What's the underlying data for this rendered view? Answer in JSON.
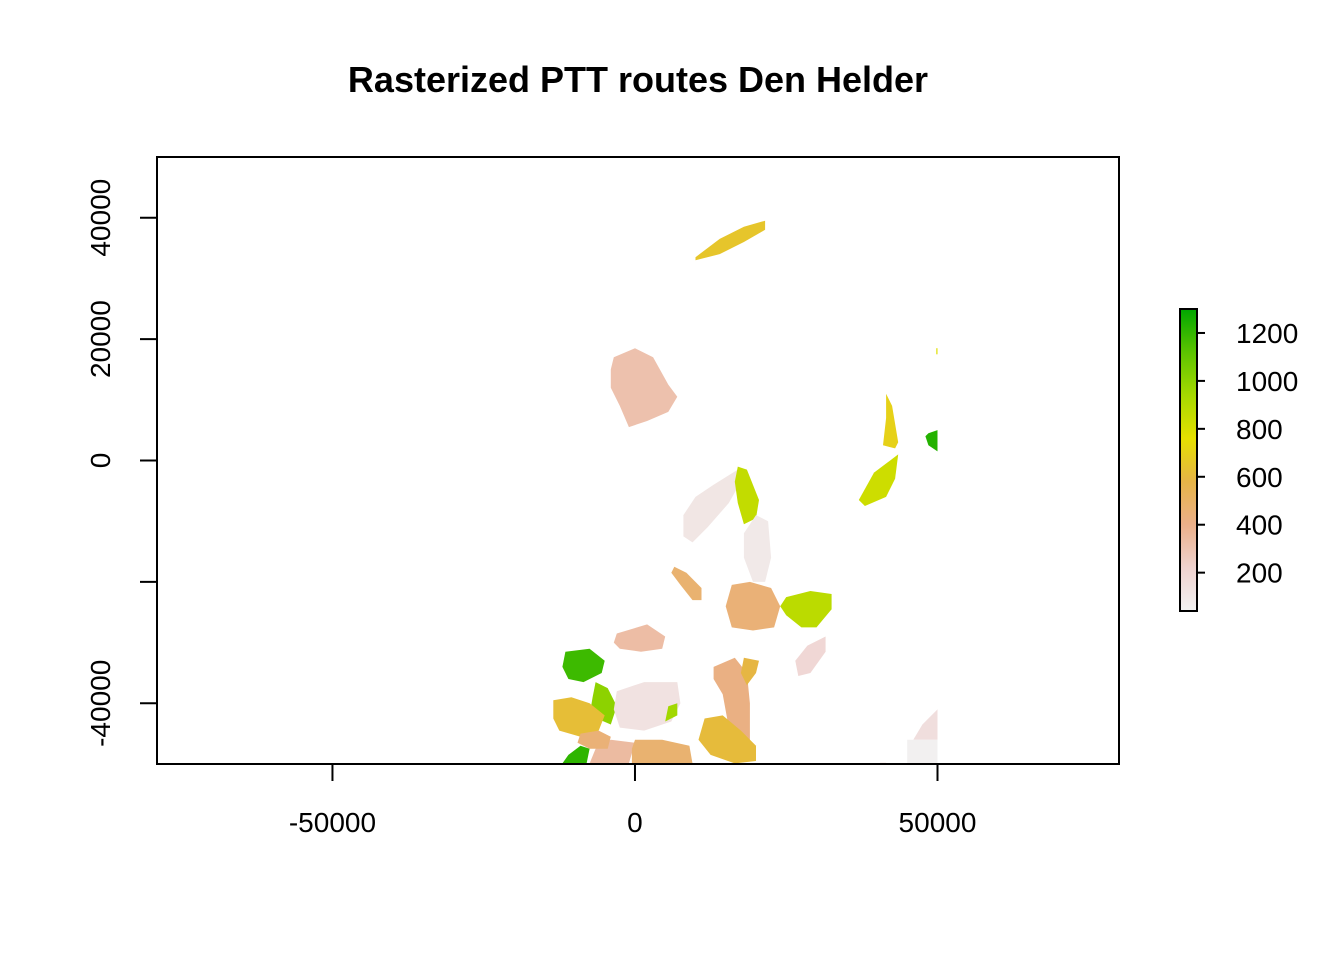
{
  "chart_data": {
    "type": "heatmap",
    "title": "Rasterized PTT routes Den Helder",
    "xlabel": "",
    "ylabel": "",
    "xlim": [
      -79000,
      80000
    ],
    "ylim": [
      -50000,
      50000
    ],
    "x_ticks": [
      -50000,
      0,
      50000
    ],
    "x_tick_labels": [
      "-50000",
      "0",
      "50000"
    ],
    "y_ticks": [
      -40000,
      -20000,
      0,
      20000,
      40000
    ],
    "y_tick_labels": [
      "-40000",
      "",
      "0",
      "20000",
      "40000"
    ],
    "legend": {
      "position": "right",
      "range": [
        40,
        1300
      ],
      "ticks": [
        200,
        400,
        600,
        800,
        1000,
        1200
      ],
      "tick_labels": [
        "200",
        "400",
        "600",
        "800",
        "1000",
        "1200"
      ],
      "colors": [
        "#f2f2f2",
        "#efd2cf",
        "#ebb08a",
        "#e6b447",
        "#e6e000",
        "#a6d900",
        "#5cc400",
        "#00a600"
      ]
    },
    "patches": [
      {
        "label": "patch-north",
        "value": 650,
        "points": [
          [
            10000,
            33500
          ],
          [
            14000,
            36500
          ],
          [
            18000,
            38500
          ],
          [
            21500,
            39500
          ],
          [
            21500,
            38000
          ],
          [
            18000,
            36000
          ],
          [
            14000,
            34000
          ],
          [
            10000,
            33000
          ]
        ]
      },
      {
        "label": "patch-west-mid",
        "value": 310,
        "points": [
          [
            -3500,
            17000
          ],
          [
            0,
            18500
          ],
          [
            3000,
            17000
          ],
          [
            5500,
            12500
          ],
          [
            7000,
            10500
          ],
          [
            5500,
            8000
          ],
          [
            2000,
            6500
          ],
          [
            -1000,
            5500
          ],
          [
            -2500,
            9000
          ],
          [
            -4000,
            12000
          ],
          [
            -4000,
            15000
          ]
        ]
      },
      {
        "label": "patch-east-strip-1",
        "value": 700,
        "points": [
          [
            41500,
            11000
          ],
          [
            42500,
            9000
          ],
          [
            43500,
            3000
          ],
          [
            43000,
            2000
          ],
          [
            41000,
            2500
          ],
          [
            41500,
            7000
          ]
        ]
      },
      {
        "label": "patch-east-strip-2",
        "value": 830,
        "points": [
          [
            39500,
            -2000
          ],
          [
            41500,
            -500
          ],
          [
            43500,
            1000
          ],
          [
            43000,
            -3000
          ],
          [
            41500,
            -6000
          ],
          [
            38000,
            -7500
          ],
          [
            37000,
            -6500
          ]
        ]
      },
      {
        "label": "patch-east-edge-green",
        "value": 1230,
        "points": [
          [
            48500,
            4500
          ],
          [
            50000,
            5000
          ],
          [
            50000,
            1500
          ],
          [
            48500,
            2500
          ],
          [
            48000,
            4000
          ]
        ]
      },
      {
        "label": "patch-east-edge-dot",
        "value": 780,
        "points": [
          [
            49800,
            18500
          ],
          [
            50000,
            18500
          ],
          [
            50000,
            17500
          ],
          [
            49800,
            17500
          ]
        ]
      },
      {
        "label": "patch-center-pale",
        "value": 110,
        "points": [
          [
            13000,
            -4000
          ],
          [
            17000,
            -1500
          ],
          [
            17500,
            -3500
          ],
          [
            15500,
            -7000
          ],
          [
            12000,
            -11000
          ],
          [
            9500,
            -13500
          ],
          [
            8000,
            -12500
          ],
          [
            8000,
            -9000
          ],
          [
            10000,
            -6000
          ]
        ]
      },
      {
        "label": "patch-center-lime",
        "value": 860,
        "points": [
          [
            17000,
            -1000
          ],
          [
            18500,
            -1500
          ],
          [
            20500,
            -6500
          ],
          [
            20000,
            -9500
          ],
          [
            18000,
            -10500
          ],
          [
            17000,
            -7000
          ],
          [
            16500,
            -3500
          ]
        ]
      },
      {
        "label": "patch-center-pale-2",
        "value": 90,
        "points": [
          [
            20000,
            -9000
          ],
          [
            22000,
            -10000
          ],
          [
            22500,
            -16000
          ],
          [
            21500,
            -20000
          ],
          [
            19500,
            -20000
          ],
          [
            18000,
            -16000
          ],
          [
            18000,
            -12000
          ]
        ]
      },
      {
        "label": "patch-small-orange",
        "value": 470,
        "points": [
          [
            6500,
            -17500
          ],
          [
            8500,
            -18500
          ],
          [
            11000,
            -21000
          ],
          [
            11000,
            -23000
          ],
          [
            9500,
            -23000
          ],
          [
            7500,
            -20500
          ],
          [
            6000,
            -18500
          ]
        ]
      },
      {
        "label": "patch-orange-large",
        "value": 450,
        "points": [
          [
            16000,
            -20500
          ],
          [
            19000,
            -20000
          ],
          [
            22500,
            -21000
          ],
          [
            24000,
            -24000
          ],
          [
            23000,
            -27500
          ],
          [
            19500,
            -28000
          ],
          [
            16000,
            -27500
          ],
          [
            15000,
            -24000
          ]
        ]
      },
      {
        "label": "patch-green-east",
        "value": 880,
        "points": [
          [
            25000,
            -22500
          ],
          [
            29000,
            -21500
          ],
          [
            32500,
            -22000
          ],
          [
            32500,
            -24500
          ],
          [
            30000,
            -27500
          ],
          [
            27500,
            -27500
          ],
          [
            25000,
            -25500
          ],
          [
            24000,
            -24000
          ]
        ]
      },
      {
        "label": "patch-salmon-east",
        "value": 190,
        "points": [
          [
            28500,
            -30500
          ],
          [
            31500,
            -29000
          ],
          [
            31500,
            -31500
          ],
          [
            29000,
            -35000
          ],
          [
            27000,
            -35500
          ],
          [
            26500,
            -33000
          ]
        ]
      },
      {
        "label": "patch-peach-west",
        "value": 330,
        "points": [
          [
            -3000,
            -28500
          ],
          [
            2000,
            -27000
          ],
          [
            5000,
            -29000
          ],
          [
            4500,
            -31000
          ],
          [
            1000,
            -31500
          ],
          [
            -2500,
            -31000
          ],
          [
            -3500,
            -30000
          ]
        ]
      },
      {
        "label": "patch-green-sw",
        "value": 1180,
        "points": [
          [
            -11500,
            -31500
          ],
          [
            -7500,
            -31000
          ],
          [
            -5000,
            -33000
          ],
          [
            -5500,
            -35000
          ],
          [
            -8500,
            -36500
          ],
          [
            -11000,
            -36000
          ],
          [
            -12000,
            -34000
          ]
        ]
      },
      {
        "label": "patch-green-sw-2",
        "value": 1000,
        "points": [
          [
            -6500,
            -36500
          ],
          [
            -4500,
            -37500
          ],
          [
            -3000,
            -40500
          ],
          [
            -4000,
            -43500
          ],
          [
            -7500,
            -42000
          ],
          [
            -7000,
            -39000
          ]
        ]
      },
      {
        "label": "patch-yellow-sw",
        "value": 620,
        "points": [
          [
            -13500,
            -39500
          ],
          [
            -10500,
            -39000
          ],
          [
            -7500,
            -40000
          ],
          [
            -5000,
            -42000
          ],
          [
            -6000,
            -44500
          ],
          [
            -9000,
            -45500
          ],
          [
            -12500,
            -44500
          ],
          [
            -13500,
            -42500
          ]
        ]
      },
      {
        "label": "patch-pale-center-sw",
        "value": 130,
        "points": [
          [
            -3000,
            -38000
          ],
          [
            1500,
            -36500
          ],
          [
            7000,
            -36500
          ],
          [
            7500,
            -40000
          ],
          [
            6000,
            -43000
          ],
          [
            1500,
            -44500
          ],
          [
            -2500,
            -44000
          ],
          [
            -3500,
            -41000
          ]
        ]
      },
      {
        "label": "patch-green-lower-right-tip",
        "value": 950,
        "points": [
          [
            5500,
            -40500
          ],
          [
            7000,
            -40000
          ],
          [
            7000,
            -42000
          ],
          [
            5000,
            -43000
          ]
        ]
      },
      {
        "label": "patch-peach-bottom-1",
        "value": 340,
        "points": [
          [
            -4000,
            -46000
          ],
          [
            0,
            -46500
          ],
          [
            -1000,
            -49900
          ],
          [
            -7500,
            -49900
          ],
          [
            -6500,
            -47500
          ]
        ]
      },
      {
        "label": "patch-orange-bottom-2",
        "value": 450,
        "points": [
          [
            -9000,
            -45000
          ],
          [
            -6000,
            -44500
          ],
          [
            -4000,
            -45500
          ],
          [
            -4500,
            -47500
          ],
          [
            -7500,
            -47500
          ],
          [
            -9500,
            -46500
          ]
        ]
      },
      {
        "label": "patch-orange-bottom-3",
        "value": 470,
        "points": [
          [
            0,
            -46000
          ],
          [
            4500,
            -46000
          ],
          [
            9000,
            -47000
          ],
          [
            9500,
            -49900
          ],
          [
            -500,
            -49900
          ],
          [
            -500,
            -47500
          ]
        ]
      },
      {
        "label": "patch-green-bottom-left",
        "value": 1210,
        "points": [
          [
            -11000,
            -48500
          ],
          [
            -9000,
            -47000
          ],
          [
            -7500,
            -47500
          ],
          [
            -8000,
            -49900
          ],
          [
            -12000,
            -49900
          ]
        ]
      },
      {
        "label": "patch-orange-mid-bottom",
        "value": 420,
        "points": [
          [
            13000,
            -34000
          ],
          [
            16500,
            -32500
          ],
          [
            18500,
            -35000
          ],
          [
            19000,
            -40000
          ],
          [
            19000,
            -46000
          ],
          [
            17000,
            -47000
          ],
          [
            15500,
            -44000
          ],
          [
            14500,
            -38500
          ],
          [
            13000,
            -36000
          ]
        ]
      },
      {
        "label": "patch-yellow-mid-bottom",
        "value": 590,
        "points": [
          [
            18000,
            -32500
          ],
          [
            20500,
            -33000
          ],
          [
            20000,
            -35000
          ],
          [
            18500,
            -37000
          ],
          [
            17500,
            -35000
          ]
        ]
      },
      {
        "label": "patch-yellow-bottom-mid",
        "value": 610,
        "points": [
          [
            11500,
            -42500
          ],
          [
            14500,
            -42000
          ],
          [
            17500,
            -44500
          ],
          [
            20000,
            -47000
          ],
          [
            20000,
            -49500
          ],
          [
            16500,
            -49900
          ],
          [
            12500,
            -48500
          ],
          [
            10500,
            -46000
          ]
        ]
      },
      {
        "label": "patch-pale-east-bottom",
        "value": 150,
        "points": [
          [
            47500,
            -43500
          ],
          [
            49500,
            -41500
          ],
          [
            50000,
            -41000
          ],
          [
            50000,
            -46000
          ],
          [
            46000,
            -46000
          ]
        ]
      },
      {
        "label": "patch-gray-east-bottom",
        "value": 50,
        "points": [
          [
            45000,
            -46000
          ],
          [
            50000,
            -46000
          ],
          [
            50000,
            -49900
          ],
          [
            45000,
            -49900
          ]
        ]
      },
      {
        "label": "patch-tiny-east-bottom",
        "value": 250,
        "points": [
          [
            40500,
            -49800
          ],
          [
            41500,
            -49800
          ],
          [
            41500,
            -49950
          ],
          [
            40500,
            -49950
          ]
        ]
      }
    ]
  }
}
